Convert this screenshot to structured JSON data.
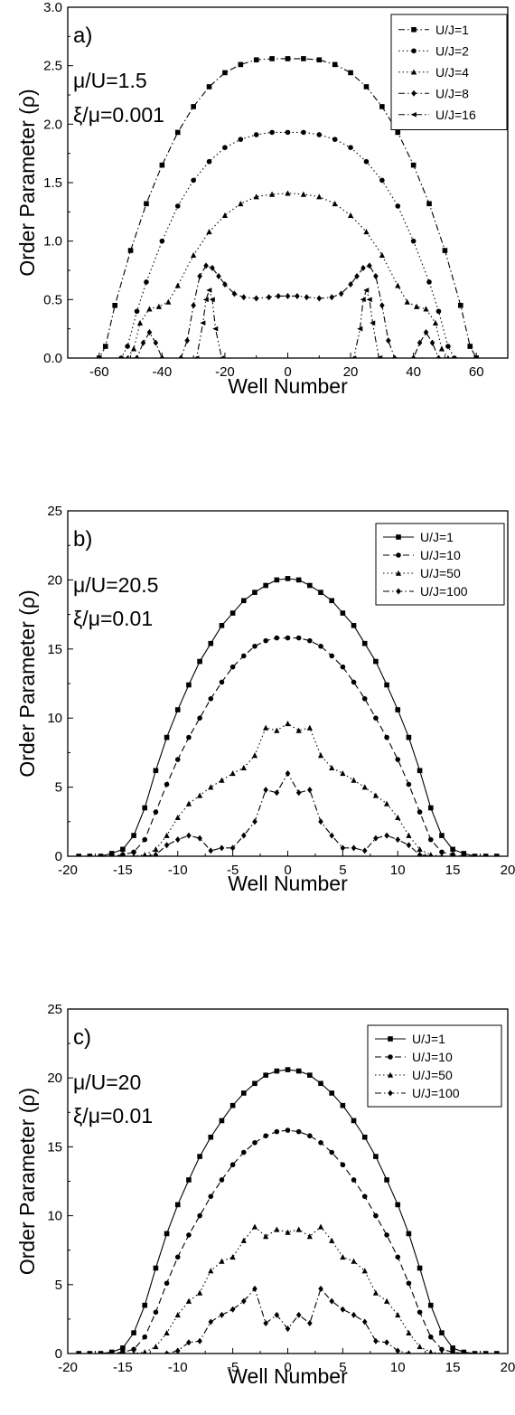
{
  "chart_data": [
    {
      "type": "line",
      "panel_label": "a)",
      "annotations": [
        "μ/U=1.5",
        "ξ/μ=0.001"
      ],
      "xlabel": "Well Number",
      "ylabel": "Order Parameter (ρ)",
      "xlim": [
        -70,
        70
      ],
      "ylim": [
        0,
        3.0
      ],
      "xticks": [
        -60,
        -40,
        -20,
        0,
        20,
        40,
        60
      ],
      "yticks": [
        0.0,
        0.5,
        1.0,
        1.5,
        2.0,
        2.5,
        3.0
      ],
      "ytick_labels": [
        "0.0",
        "0.5",
        "1.0",
        "1.5",
        "2.0",
        "2.5",
        "3.0"
      ],
      "legend_position": "top-right",
      "series": [
        {
          "name": "U/J=1",
          "marker": "square",
          "dash": "dashdot",
          "x": [
            -70,
            -60,
            -58,
            -55,
            -50,
            -45,
            -40,
            -35,
            -30,
            -25,
            -20,
            -15,
            -10,
            -5,
            0,
            5,
            10,
            15,
            20,
            25,
            30,
            35,
            40,
            45,
            50,
            55,
            58,
            60,
            70
          ],
          "y": [
            0,
            0,
            0.1,
            0.45,
            0.92,
            1.32,
            1.65,
            1.93,
            2.15,
            2.32,
            2.44,
            2.51,
            2.55,
            2.56,
            2.56,
            2.56,
            2.55,
            2.51,
            2.44,
            2.32,
            2.15,
            1.93,
            1.65,
            1.32,
            0.92,
            0.45,
            0.1,
            0,
            0
          ]
        },
        {
          "name": "U/J=2",
          "marker": "circle",
          "dash": "dot",
          "x": [
            -70,
            -53,
            -51,
            -48,
            -45,
            -40,
            -35,
            -30,
            -25,
            -20,
            -15,
            -10,
            -5,
            0,
            5,
            10,
            15,
            20,
            25,
            30,
            35,
            40,
            45,
            48,
            51,
            53,
            70
          ],
          "y": [
            0,
            0,
            0.1,
            0.4,
            0.65,
            1.0,
            1.3,
            1.52,
            1.68,
            1.8,
            1.87,
            1.91,
            1.93,
            1.93,
            1.93,
            1.91,
            1.87,
            1.8,
            1.68,
            1.52,
            1.3,
            1.0,
            0.65,
            0.4,
            0.1,
            0,
            0
          ]
        },
        {
          "name": "U/J=4",
          "marker": "triangle",
          "dash": "dot",
          "x": [
            -70,
            -51,
            -49,
            -47,
            -44,
            -41,
            -38,
            -35,
            -30,
            -25,
            -20,
            -15,
            -10,
            -5,
            0,
            5,
            10,
            15,
            20,
            25,
            30,
            35,
            38,
            41,
            44,
            47,
            49,
            51,
            70
          ],
          "y": [
            0,
            0,
            0.08,
            0.3,
            0.42,
            0.44,
            0.48,
            0.62,
            0.88,
            1.08,
            1.22,
            1.32,
            1.38,
            1.4,
            1.41,
            1.4,
            1.38,
            1.32,
            1.22,
            1.08,
            0.88,
            0.62,
            0.48,
            0.44,
            0.42,
            0.3,
            0.08,
            0,
            0
          ]
        },
        {
          "name": "U/J=8",
          "marker": "diamond",
          "dash": "dashdot",
          "x": [
            -70,
            -48,
            -46,
            -44,
            -42,
            -40,
            -34,
            -32,
            -30,
            -28,
            -26,
            -24,
            -22,
            -20,
            -17,
            -14,
            -10,
            -6,
            -3,
            0,
            3,
            6,
            10,
            14,
            17,
            20,
            22,
            24,
            26,
            28,
            30,
            32,
            34,
            40,
            42,
            44,
            46,
            48,
            70
          ],
          "y": [
            0,
            0,
            0.13,
            0.22,
            0.13,
            0,
            0,
            0.15,
            0.45,
            0.7,
            0.79,
            0.77,
            0.7,
            0.63,
            0.55,
            0.52,
            0.51,
            0.52,
            0.53,
            0.53,
            0.53,
            0.52,
            0.51,
            0.52,
            0.55,
            0.63,
            0.7,
            0.77,
            0.79,
            0.7,
            0.45,
            0.15,
            0,
            0,
            0.13,
            0.22,
            0.13,
            0,
            0
          ]
        },
        {
          "name": "U/J=16",
          "marker": "left-triangle",
          "dash": "dashdotdot",
          "x": [
            -70,
            -29,
            -27,
            -26,
            -25,
            -24,
            -23,
            -21,
            21,
            23,
            24,
            25,
            26,
            27,
            29,
            70
          ],
          "y": [
            0,
            0,
            0.3,
            0.5,
            0.58,
            0.5,
            0.25,
            0,
            0,
            0.25,
            0.5,
            0.58,
            0.5,
            0.3,
            0,
            0
          ]
        }
      ]
    },
    {
      "type": "line",
      "panel_label": "b)",
      "annotations": [
        "μ/U=20.5",
        "ξ/μ=0.01"
      ],
      "xlabel": "Well Number",
      "ylabel": "Order Parameter (ρ)",
      "xlim": [
        -20,
        20
      ],
      "ylim": [
        0,
        25
      ],
      "xticks": [
        -20,
        -15,
        -10,
        -5,
        0,
        5,
        10,
        15,
        20
      ],
      "yticks": [
        0,
        5,
        10,
        15,
        20,
        25
      ],
      "ytick_labels": [
        "0",
        "5",
        "10",
        "15",
        "20",
        "25"
      ],
      "legend_position": "top-right",
      "series": [
        {
          "name": "U/J=1",
          "marker": "square",
          "dash": "solid",
          "x": [
            -20,
            -19,
            -18,
            -17,
            -16,
            -15,
            -14,
            -13,
            -12,
            -11,
            -10,
            -9,
            -8,
            -7,
            -6,
            -5,
            -4,
            -3,
            -2,
            -1,
            0,
            1,
            2,
            3,
            4,
            5,
            6,
            7,
            8,
            9,
            10,
            11,
            12,
            13,
            14,
            15,
            16,
            17,
            18,
            19,
            20
          ],
          "y": [
            0,
            0,
            0,
            0,
            0.2,
            0.5,
            1.5,
            3.5,
            6.2,
            8.6,
            10.6,
            12.4,
            14.1,
            15.4,
            16.7,
            17.6,
            18.5,
            19.1,
            19.6,
            20.0,
            20.1,
            20.0,
            19.6,
            19.1,
            18.5,
            17.6,
            16.7,
            15.4,
            14.1,
            12.4,
            10.6,
            8.6,
            6.2,
            3.5,
            1.5,
            0.5,
            0.2,
            0,
            0,
            0,
            0
          ]
        },
        {
          "name": "U/J=10",
          "marker": "circle",
          "dash": "dash",
          "x": [
            -20,
            -18,
            -16,
            -15,
            -14,
            -13,
            -12,
            -11,
            -10,
            -9,
            -8,
            -7,
            -6,
            -5,
            -4,
            -3,
            -2,
            -1,
            0,
            1,
            2,
            3,
            4,
            5,
            6,
            7,
            8,
            9,
            10,
            11,
            12,
            13,
            14,
            15,
            16,
            18,
            20
          ],
          "y": [
            0,
            0,
            0,
            0.1,
            0.3,
            1.2,
            3.2,
            5.2,
            7.0,
            8.6,
            10.0,
            11.4,
            12.6,
            13.7,
            14.5,
            15.2,
            15.6,
            15.8,
            15.8,
            15.8,
            15.6,
            15.2,
            14.5,
            13.7,
            12.6,
            11.4,
            10.0,
            8.6,
            7.0,
            5.2,
            3.2,
            1.2,
            0.3,
            0.1,
            0,
            0,
            0
          ]
        },
        {
          "name": "U/J=50",
          "marker": "triangle",
          "dash": "dot",
          "x": [
            -20,
            -14,
            -13,
            -12,
            -11,
            -10,
            -9,
            -8,
            -7,
            -6,
            -5,
            -4,
            -3,
            -2,
            -1,
            0,
            1,
            2,
            3,
            4,
            5,
            6,
            7,
            8,
            9,
            10,
            11,
            12,
            13,
            14,
            20
          ],
          "y": [
            0,
            0,
            0.1,
            0.5,
            1.5,
            2.8,
            3.8,
            4.4,
            5.0,
            5.5,
            6.0,
            6.4,
            7.3,
            9.3,
            9.1,
            9.6,
            9.1,
            9.3,
            7.3,
            6.4,
            6.0,
            5.5,
            5.0,
            4.4,
            3.8,
            2.8,
            1.5,
            0.5,
            0.1,
            0,
            0
          ]
        },
        {
          "name": "U/J=100",
          "marker": "diamond",
          "dash": "dashdot",
          "x": [
            -20,
            -13,
            -12,
            -11,
            -10,
            -9,
            -8,
            -7,
            -6,
            -5,
            -4,
            -3,
            -2,
            -1,
            0,
            1,
            2,
            3,
            4,
            5,
            6,
            7,
            8,
            9,
            10,
            11,
            12,
            13,
            20
          ],
          "y": [
            0,
            0,
            0.1,
            0.8,
            1.2,
            1.5,
            1.3,
            0.4,
            0.6,
            0.6,
            1.5,
            2.5,
            4.8,
            4.6,
            6.0,
            4.6,
            4.8,
            2.5,
            1.5,
            0.6,
            0.6,
            0.4,
            1.3,
            1.5,
            1.2,
            0.8,
            0.1,
            0,
            0
          ]
        }
      ]
    },
    {
      "type": "line",
      "panel_label": "c)",
      "annotations": [
        "μ/U=20",
        "ξ/μ=0.01"
      ],
      "xlabel": "Well Number",
      "ylabel": "Order Parameter (ρ)",
      "xlim": [
        -20,
        20
      ],
      "ylim": [
        0,
        25
      ],
      "xticks": [
        -20,
        -15,
        -10,
        -5,
        0,
        5,
        10,
        15,
        20
      ],
      "yticks": [
        0,
        5,
        10,
        15,
        20,
        25
      ],
      "ytick_labels": [
        "0",
        "5",
        "10",
        "15",
        "20",
        "25"
      ],
      "legend_position": "top-right",
      "series": [
        {
          "name": "U/J=1",
          "marker": "square",
          "dash": "solid",
          "x": [
            -20,
            -19,
            -18,
            -17,
            -16,
            -15,
            -14,
            -13,
            -12,
            -11,
            -10,
            -9,
            -8,
            -7,
            -6,
            -5,
            -4,
            -3,
            -2,
            -1,
            0,
            1,
            2,
            3,
            4,
            5,
            6,
            7,
            8,
            9,
            10,
            11,
            12,
            13,
            14,
            15,
            16,
            17,
            18,
            19,
            20
          ],
          "y": [
            0,
            0,
            0,
            0,
            0.1,
            0.4,
            1.5,
            3.5,
            6.2,
            8.7,
            10.8,
            12.6,
            14.3,
            15.7,
            16.9,
            18.0,
            18.9,
            19.6,
            20.2,
            20.5,
            20.6,
            20.5,
            20.2,
            19.6,
            18.9,
            18.0,
            16.9,
            15.7,
            14.3,
            12.6,
            10.8,
            8.7,
            6.2,
            3.5,
            1.5,
            0.4,
            0.1,
            0,
            0,
            0,
            0
          ]
        },
        {
          "name": "U/J=10",
          "marker": "circle",
          "dash": "dash",
          "x": [
            -20,
            -16,
            -15,
            -14,
            -13,
            -12,
            -11,
            -10,
            -9,
            -8,
            -7,
            -6,
            -5,
            -4,
            -3,
            -2,
            -1,
            0,
            1,
            2,
            3,
            4,
            5,
            6,
            7,
            8,
            9,
            10,
            11,
            12,
            13,
            14,
            15,
            16,
            20
          ],
          "y": [
            0,
            0,
            0.1,
            0.3,
            1.2,
            3.0,
            5.1,
            7.0,
            8.6,
            10.0,
            11.4,
            12.6,
            13.7,
            14.6,
            15.3,
            15.8,
            16.1,
            16.2,
            16.1,
            15.8,
            15.3,
            14.6,
            13.7,
            12.6,
            11.4,
            10.0,
            8.6,
            7.0,
            5.1,
            3.0,
            1.2,
            0.3,
            0.1,
            0,
            0
          ]
        },
        {
          "name": "U/J=50",
          "marker": "triangle",
          "dash": "dot",
          "x": [
            -20,
            -14,
            -13,
            -12,
            -11,
            -10,
            -9,
            -8,
            -7,
            -6,
            -5,
            -4,
            -3,
            -2,
            -1,
            0,
            1,
            2,
            3,
            4,
            5,
            6,
            7,
            8,
            9,
            10,
            11,
            12,
            13,
            14,
            20
          ],
          "y": [
            0,
            0,
            0.1,
            0.5,
            1.5,
            2.8,
            3.8,
            4.4,
            6.0,
            6.7,
            7.0,
            8.2,
            9.2,
            8.5,
            9.0,
            8.8,
            9.0,
            8.5,
            9.2,
            8.2,
            7.0,
            6.7,
            6.0,
            4.4,
            3.8,
            2.8,
            1.5,
            0.5,
            0.1,
            0,
            0
          ]
        },
        {
          "name": "U/J=100",
          "marker": "diamond",
          "dash": "dashdot",
          "x": [
            -20,
            -11,
            -10,
            -9,
            -8,
            -7,
            -6,
            -5,
            -4,
            -3,
            -2,
            -1,
            0,
            1,
            2,
            3,
            4,
            5,
            6,
            7,
            8,
            9,
            10,
            11,
            20
          ],
          "y": [
            0,
            0,
            0.2,
            0.8,
            0.9,
            2.3,
            2.8,
            3.2,
            3.8,
            4.7,
            2.2,
            2.8,
            1.8,
            2.8,
            2.2,
            4.7,
            3.8,
            3.2,
            2.8,
            2.3,
            0.9,
            0.8,
            0.2,
            0,
            0
          ]
        }
      ]
    }
  ]
}
